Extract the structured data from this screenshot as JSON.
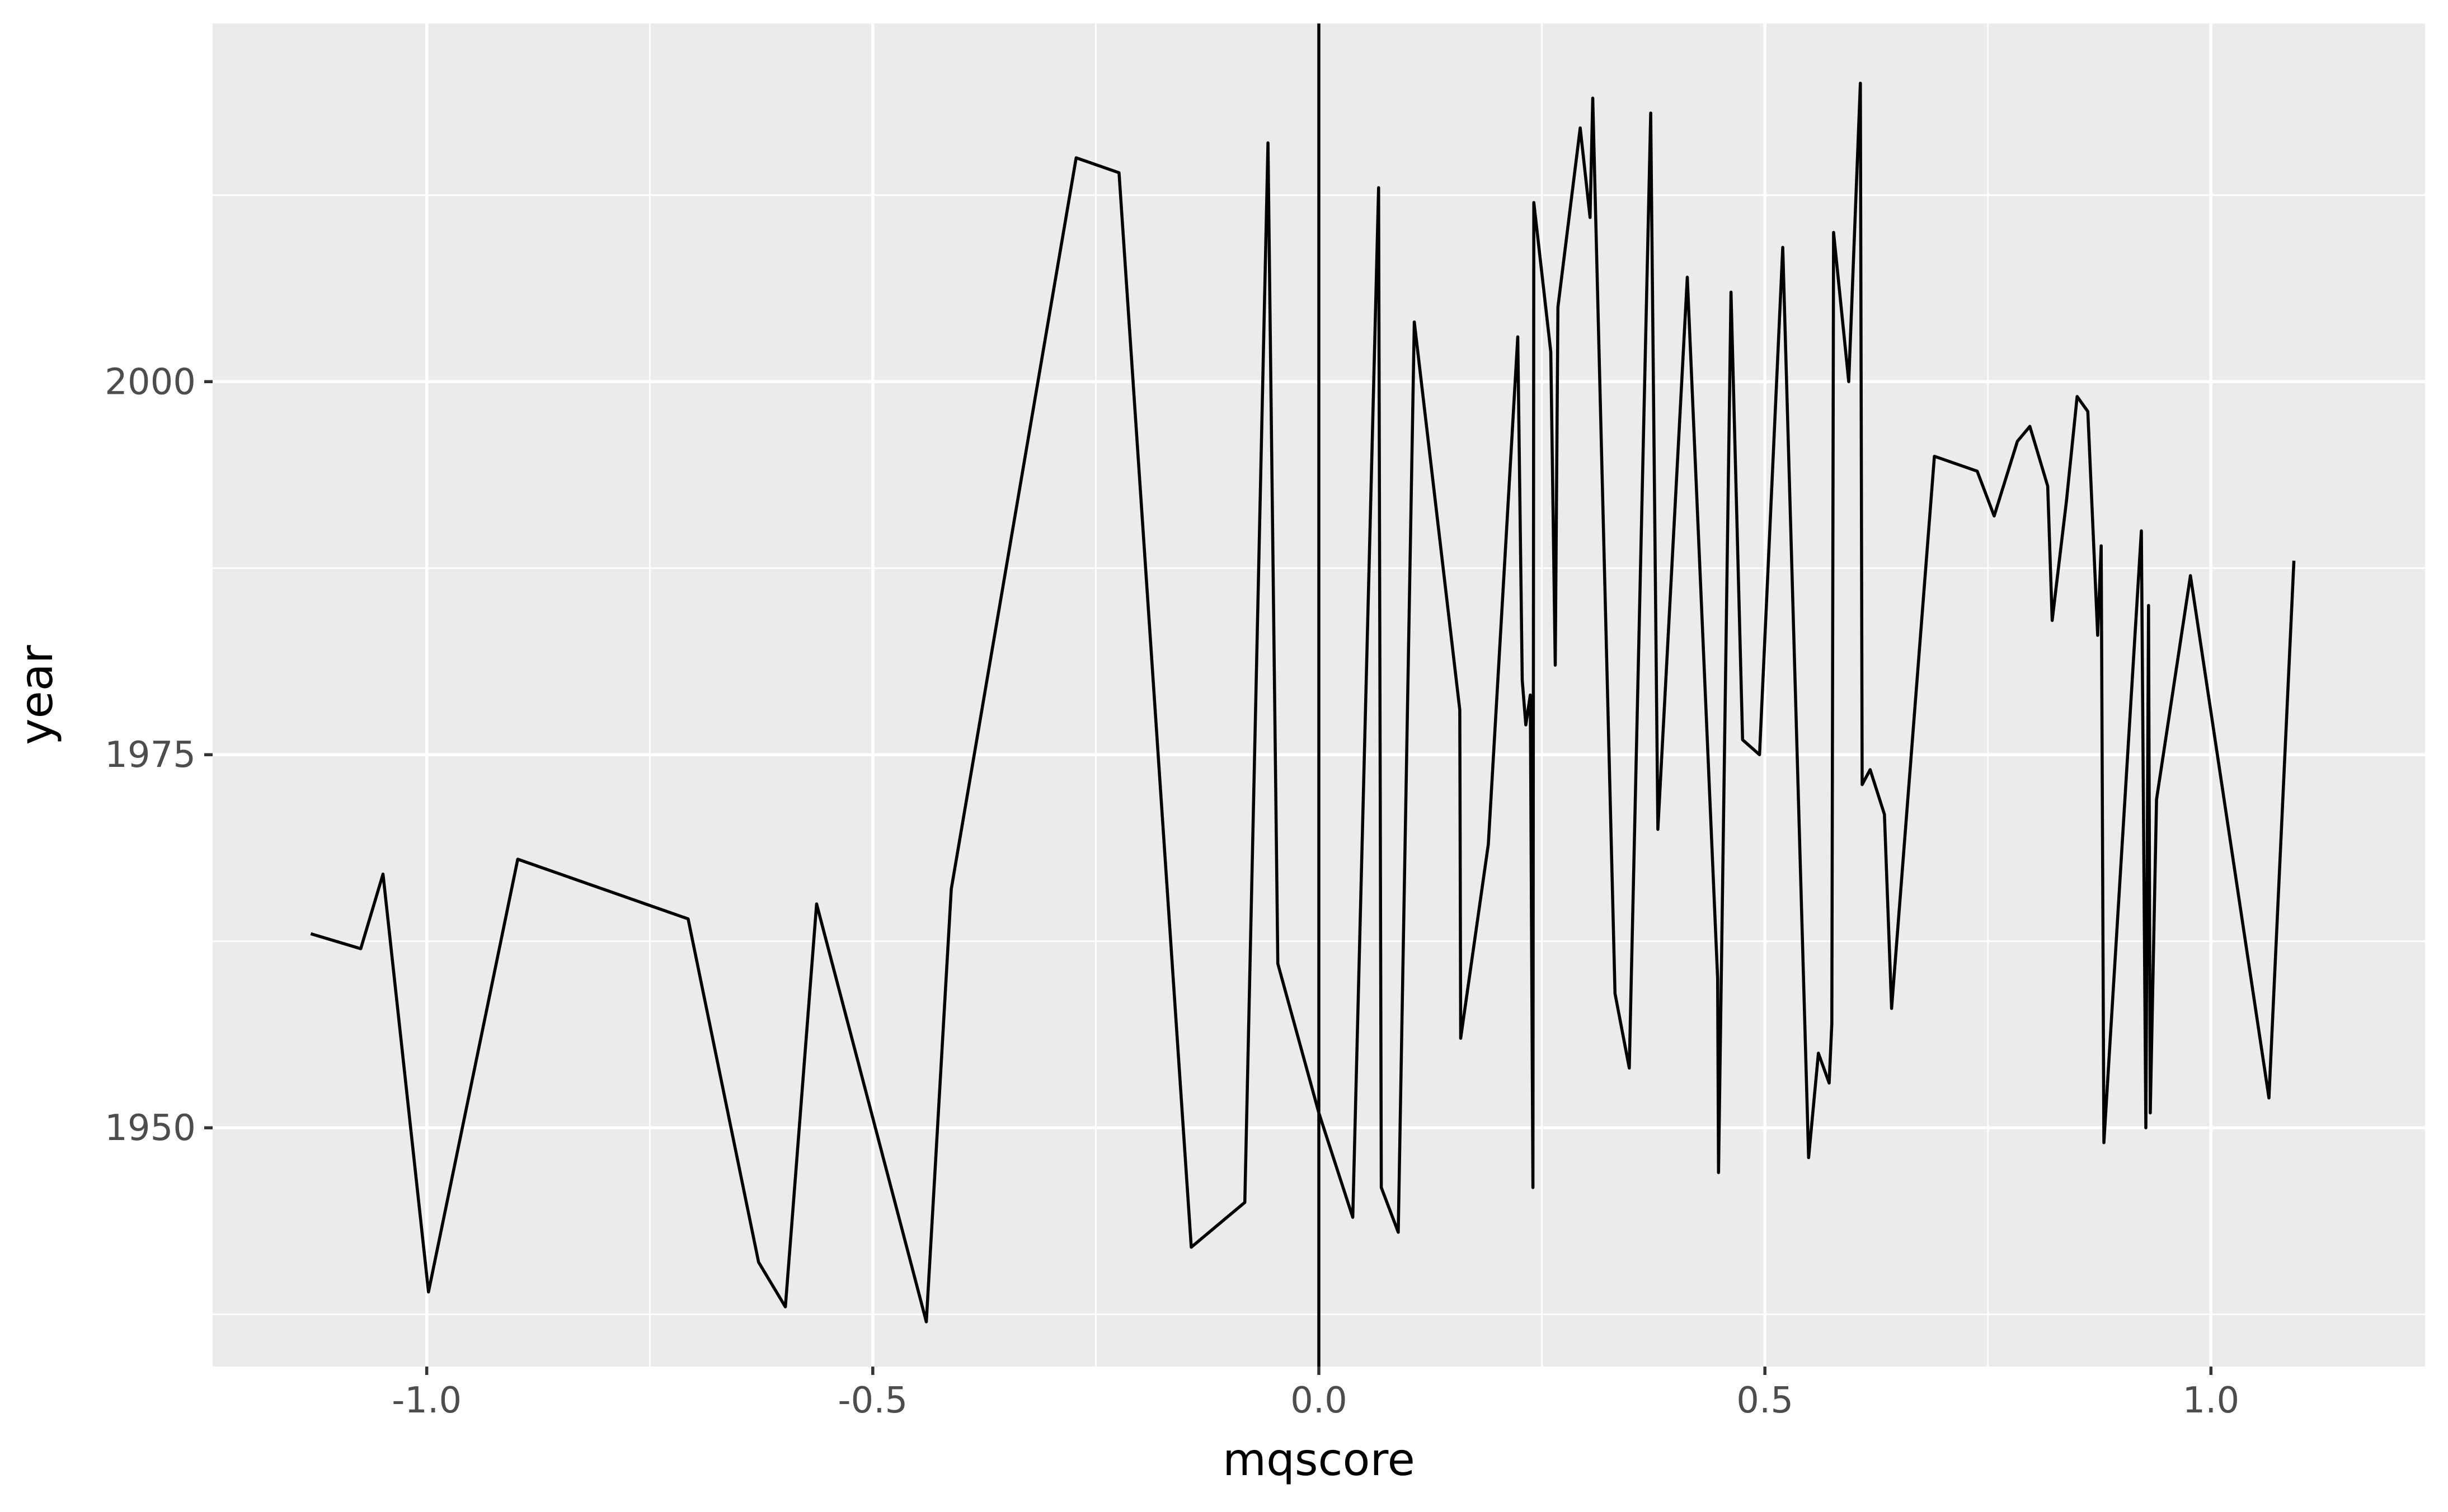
{
  "chart_data": {
    "type": "line",
    "xlabel": "mqscore",
    "ylabel": "year",
    "xlim": [
      -1.24,
      1.24
    ],
    "ylim": [
      1934,
      2024
    ],
    "x_ticks": [
      -1.0,
      -0.5,
      0.0,
      0.5,
      1.0
    ],
    "x_tick_labels": [
      "-1.0",
      "-0.5",
      "0.0",
      "0.5",
      "1.0"
    ],
    "x_minor_ticks": [
      -0.75,
      -0.25,
      0.25,
      0.75
    ],
    "y_ticks": [
      1950,
      1975,
      2000
    ],
    "y_tick_labels": [
      "1950",
      "1975",
      "2000"
    ],
    "y_minor_ticks": [
      1937.5,
      1962.5,
      1987.5,
      2012.5
    ],
    "vline_x": 0,
    "grid": true,
    "background_color": "#ebebeb",
    "line_color": "#000000",
    "series": [
      {
        "x": [
          -1.13,
          -1.074,
          -1.049,
          -0.998,
          -0.898,
          -0.707,
          -0.628,
          -0.598,
          -0.563,
          -0.44,
          -0.412,
          -0.272,
          -0.224,
          -0.143,
          -0.083,
          -0.057,
          -0.046,
          0.0,
          0.038,
          0.067,
          0.07,
          0.089,
          0.107,
          0.158,
          0.159,
          0.19,
          0.223,
          0.228,
          0.232,
          0.237,
          0.24,
          0.241,
          0.26,
          0.265,
          0.268,
          0.293,
          0.304,
          0.307,
          0.332,
          0.348,
          0.372,
          0.38,
          0.413,
          0.447,
          0.448,
          0.462,
          0.475,
          0.494,
          0.52,
          0.549,
          0.56,
          0.572,
          0.575,
          0.577,
          0.594,
          0.607,
          0.609,
          0.618,
          0.634,
          0.642,
          0.69,
          0.738,
          0.757,
          0.783,
          0.797,
          0.817,
          0.822,
          0.838,
          0.85,
          0.862,
          0.873,
          0.877,
          0.88,
          0.922,
          0.927,
          0.93,
          0.932,
          0.939,
          0.977,
          1.065,
          1.093
        ],
        "y": [
          1963,
          1962,
          1967,
          1939,
          1968,
          1964,
          1941,
          1938,
          1965,
          1937,
          1966,
          2015,
          2014,
          1942,
          1945,
          2016,
          1961,
          1951,
          1944,
          2013,
          1946,
          1943,
          2004,
          1978,
          1956,
          1969,
          2003,
          1980,
          1977,
          1979,
          1946,
          2012,
          2002,
          1981,
          2005,
          2017,
          2011,
          2019,
          1959,
          1954,
          2018,
          1970,
          2007,
          1960,
          1947,
          2006,
          1976,
          1975,
          2009,
          1948,
          1955,
          1953,
          1957,
          2010,
          2000,
          2020,
          1973,
          1974,
          1971,
          1958,
          1995,
          1994,
          1991,
          1996,
          1997,
          1993,
          1984,
          1992,
          1999,
          1998,
          1983,
          1989,
          1949,
          1990,
          1950,
          1985,
          1951,
          1972,
          1987,
          1952,
          1988
        ]
      }
    ]
  }
}
